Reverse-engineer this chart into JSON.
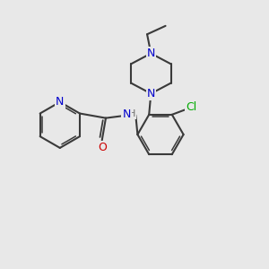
{
  "bg_color": "#e8e8e8",
  "bond_color": "#3a3a3a",
  "bond_width": 1.5,
  "atom_colors": {
    "N": "#0000cc",
    "O": "#cc0000",
    "Cl": "#00aa00",
    "H": "#707070"
  },
  "font_size": 9,
  "fig_size": [
    3.0,
    3.0
  ],
  "dpi": 100
}
